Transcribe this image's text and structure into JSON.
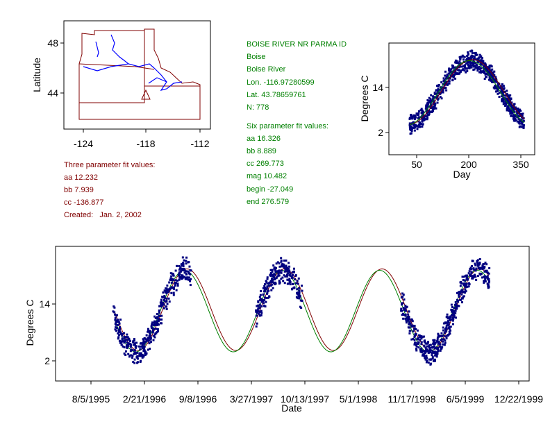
{
  "station": {
    "name": "BOISE RIVER NR PARMA ID",
    "city": "Boise",
    "river": "Boise River",
    "lon": "Lon. -116.97280599",
    "lat": "Lat. 43.78659761",
    "n": "N: 778"
  },
  "three_fit": {
    "title": "Three parameter fit values:",
    "aa": "aa 12.232",
    "bb": "bb 7.939",
    "cc": "cc -136.877",
    "created": "Created:   Jan. 2, 2002"
  },
  "six_fit": {
    "title": "Six parameter fit values:",
    "aa": "aa 16.326",
    "bb": "bb 8.889",
    "cc": "cc 269.773",
    "mag": "mag 10.482",
    "begin": "begin -27.049",
    "end": "end 276.579"
  },
  "colors": {
    "points": "#000080",
    "fit3": "#800000",
    "fit6": "#008000",
    "map_border": "#800000",
    "rivers": "#0000ff"
  },
  "chart_data": [
    {
      "type": "map",
      "ylabel": "Latitude",
      "xticks": [
        "-124",
        "-118",
        "-112"
      ],
      "yticks": [
        "48",
        "44"
      ],
      "station_marker": {
        "lon": -116.97,
        "lat": 43.79
      }
    },
    {
      "type": "scatter",
      "xlabel": "Day",
      "ylabel": "Degrees C",
      "xticks": [
        "50",
        "200",
        "350"
      ],
      "yticks": [
        "14",
        "2"
      ],
      "xlim": [
        0,
        365
      ],
      "ylim": [
        -0.5,
        27
      ],
      "n": 778,
      "fit_model": {
        "mean": 12.5,
        "amplitude": 8.6,
        "peak_day": 205
      },
      "data_day_range": [
        30,
        360
      ]
    },
    {
      "type": "scatter",
      "xlabel": "Date",
      "ylabel": "Degrees C",
      "xticks": [
        "8/5/1995",
        "2/21/1996",
        "9/8/1996",
        "3/27/1997",
        "10/13/1997",
        "5/1/1998",
        "11/17/1998",
        "6/5/1999",
        "12/22/1999"
      ],
      "yticks": [
        "14",
        "2"
      ],
      "data_segments": [
        [
          "1/1996",
          "9/1996"
        ],
        [
          "6/1997",
          "10/1997"
        ],
        [
          "11/1998",
          "10/1999"
        ]
      ]
    }
  ]
}
